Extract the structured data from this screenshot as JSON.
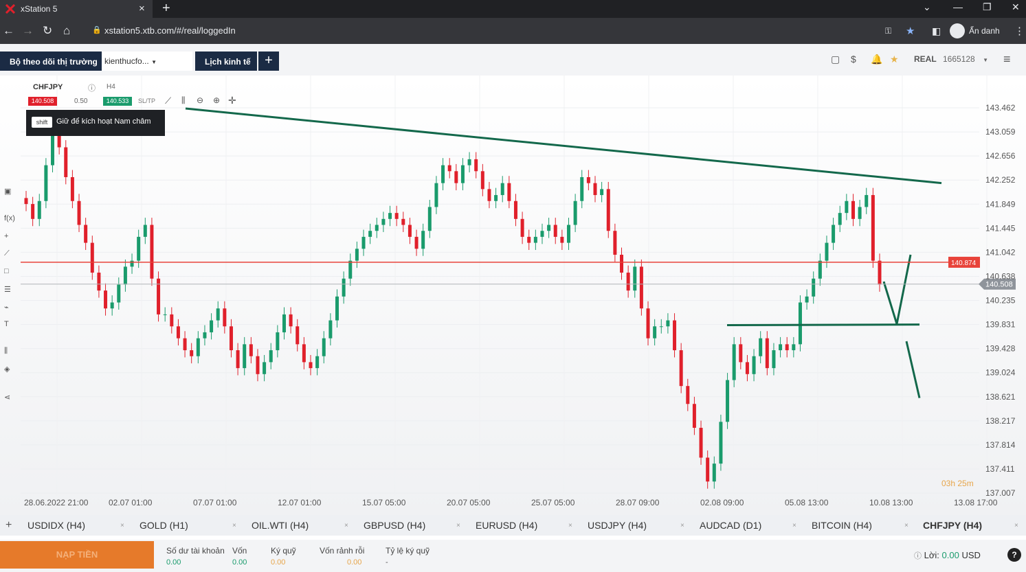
{
  "browser": {
    "tab_title": "xStation 5",
    "new_tab": "+",
    "url": "xstation5.xtb.com/#/real/loggedIn",
    "incognito_label": "Ẩn danh"
  },
  "app": {
    "tabs": {
      "watch": "Bộ theo dõi thị trường",
      "kien": "kienthucfo...",
      "lich": "Lịch kinh tế",
      "add": "+"
    },
    "account_mode": "REAL",
    "account_id": "1665128"
  },
  "chart_header": {
    "symbol": "CHFJPY",
    "timeframe": "H4",
    "bid": "140.508",
    "volume": "0.50",
    "ask": "140.533",
    "sltp": "SL/TP",
    "tooltip_key": "shift",
    "tooltip_text": "Giữ để kích hoạt Nam châm"
  },
  "chart_data": {
    "type": "candlestick",
    "y_ticks": [
      "143.462",
      "143.059",
      "142.656",
      "142.252",
      "141.849",
      "141.445",
      "141.042",
      "140.638",
      "140.235",
      "139.831",
      "139.428",
      "139.024",
      "138.621",
      "138.217",
      "137.814",
      "137.411",
      "137.007"
    ],
    "x_ticks": [
      "28.06.2022 21:00",
      "02.07 01:00",
      "07.07 01:00",
      "12.07 01:00",
      "15.07 05:00",
      "20.07 05:00",
      "25.07 05:00",
      "28.07 09:00",
      "02.08 09:00",
      "05.08 13:00",
      "10.08 13:00",
      "13.08 17:00"
    ],
    "ylim": [
      137.007,
      143.462
    ],
    "horizontal_line_label": "140.874",
    "horizontal_line_value": 140.874,
    "current_price_label": "140.508",
    "current_price_value": 140.508,
    "timer": "03h 25m",
    "colors": {
      "up": "#1a9b6c",
      "down": "#e0202b",
      "trendline": "#13684b",
      "hline": "#e8433a"
    }
  },
  "symbol_tabs": [
    "USDIDX (H4)",
    "GOLD (H1)",
    "OIL.WTI (H4)",
    "GBPUSD (H4)",
    "EURUSD (H4)",
    "USDJPY (H4)",
    "AUDCAD (D1)",
    "BITCOIN (H4)",
    "CHFJPY (H4)"
  ],
  "footer": {
    "deposit": "NẠP TIỀN",
    "labels": [
      "Số dư tài khoản",
      "Vốn",
      "Ký quỹ",
      "Vốn rảnh rỗi",
      "Tỷ lệ ký quỹ"
    ],
    "values": [
      "0.00",
      "0.00",
      "0.00",
      "0.00",
      "-"
    ],
    "profit_label": "Lời:",
    "profit_value": "0.00",
    "currency": "USD",
    "help": "?"
  }
}
